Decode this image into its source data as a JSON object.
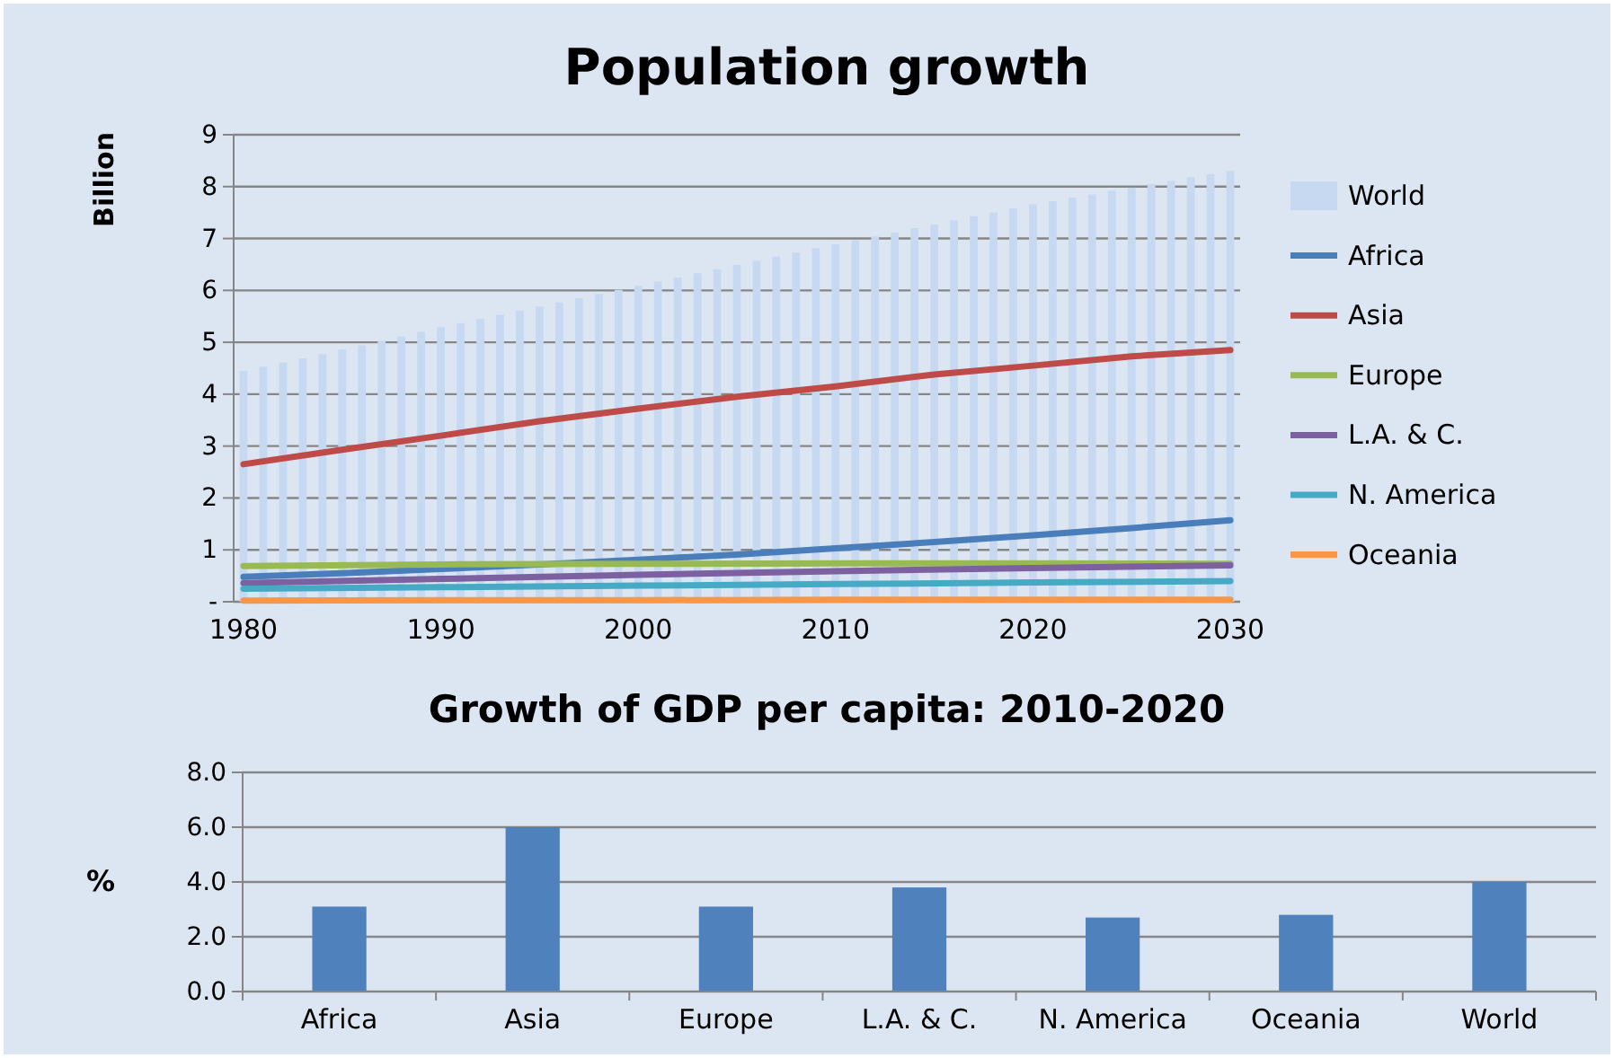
{
  "chart_data": [
    {
      "type": "line",
      "title": "Population growth",
      "ylabel": "Billion",
      "xlim": [
        1979.5,
        2030.5
      ],
      "xticks": [
        1980,
        1990,
        2000,
        2010,
        2020,
        2030
      ],
      "ylim": [
        0,
        9
      ],
      "yticks": [
        {
          "value": 0,
          "label": "-"
        },
        1,
        2,
        3,
        4,
        5,
        6,
        7,
        8,
        9
      ],
      "grid": "y",
      "legend": "right",
      "series": [
        {
          "name": "World",
          "type": "bar",
          "color": "#c6d9f1",
          "x": [
            1980,
            1981,
            1982,
            1983,
            1984,
            1985,
            1986,
            1987,
            1988,
            1989,
            1990,
            1991,
            1992,
            1993,
            1994,
            1995,
            1996,
            1997,
            1998,
            1999,
            2000,
            2001,
            2002,
            2003,
            2004,
            2005,
            2006,
            2007,
            2008,
            2009,
            2010,
            2011,
            2012,
            2013,
            2014,
            2015,
            2016,
            2017,
            2018,
            2019,
            2020,
            2021,
            2022,
            2023,
            2024,
            2025,
            2026,
            2027,
            2028,
            2029,
            2030
          ],
          "values": [
            4.45,
            4.53,
            4.61,
            4.69,
            4.77,
            4.86,
            4.94,
            5.03,
            5.11,
            5.2,
            5.29,
            5.37,
            5.45,
            5.53,
            5.61,
            5.69,
            5.77,
            5.85,
            5.93,
            6.01,
            6.09,
            6.17,
            6.25,
            6.33,
            6.41,
            6.49,
            6.57,
            6.65,
            6.73,
            6.81,
            6.89,
            6.97,
            7.04,
            7.12,
            7.2,
            7.27,
            7.35,
            7.43,
            7.5,
            7.58,
            7.66,
            7.72,
            7.79,
            7.85,
            7.92,
            7.98,
            8.05,
            8.11,
            8.18,
            8.24,
            8.3
          ]
        },
        {
          "name": "Africa",
          "color": "#4a7ebb",
          "x": [
            1980,
            1985,
            1990,
            1995,
            2000,
            2005,
            2010,
            2015,
            2020,
            2025,
            2030
          ],
          "values": [
            0.48,
            0.55,
            0.63,
            0.72,
            0.81,
            0.91,
            1.03,
            1.15,
            1.28,
            1.42,
            1.57
          ]
        },
        {
          "name": "Asia",
          "color": "#be4b48",
          "x": [
            1980,
            1985,
            1990,
            1995,
            2000,
            2005,
            2010,
            2015,
            2020,
            2025,
            2030
          ],
          "values": [
            2.65,
            2.93,
            3.2,
            3.48,
            3.72,
            3.95,
            4.15,
            4.38,
            4.55,
            4.73,
            4.85
          ]
        },
        {
          "name": "Europe",
          "color": "#98b954",
          "x": [
            1980,
            1990,
            2000,
            2010,
            2020,
            2030
          ],
          "values": [
            0.69,
            0.72,
            0.73,
            0.74,
            0.74,
            0.73
          ]
        },
        {
          "name": "L.A. & C.",
          "color": "#7d60a0",
          "x": [
            1980,
            1990,
            2000,
            2010,
            2020,
            2030
          ],
          "values": [
            0.36,
            0.44,
            0.52,
            0.59,
            0.65,
            0.7
          ]
        },
        {
          "name": "N. America",
          "color": "#46aac5",
          "x": [
            1980,
            1990,
            2000,
            2010,
            2020,
            2030
          ],
          "values": [
            0.25,
            0.28,
            0.31,
            0.34,
            0.37,
            0.4
          ]
        },
        {
          "name": "Oceania",
          "color": "#f79646",
          "x": [
            1980,
            1990,
            2000,
            2010,
            2020,
            2030
          ],
          "values": [
            0.02,
            0.03,
            0.03,
            0.04,
            0.04,
            0.04
          ]
        }
      ]
    },
    {
      "type": "bar",
      "title": "Growth of GDP per capita: 2010-2020",
      "ylabel": "%",
      "categories": [
        "Africa",
        "Asia",
        "Europe",
        "L.A. & C.",
        "N. America",
        "Oceania",
        "World"
      ],
      "values": [
        3.1,
        6.0,
        3.1,
        3.8,
        2.7,
        2.8,
        4.0
      ],
      "color": "#4f81bd",
      "ylim": [
        0,
        8
      ],
      "yticks": [
        {
          "value": 0,
          "label": "0.0"
        },
        {
          "value": 2,
          "label": "2.0"
        },
        {
          "value": 4,
          "label": "4.0"
        },
        {
          "value": 6,
          "label": "6.0"
        },
        {
          "value": 8,
          "label": "8.0"
        }
      ],
      "grid": "y"
    }
  ]
}
